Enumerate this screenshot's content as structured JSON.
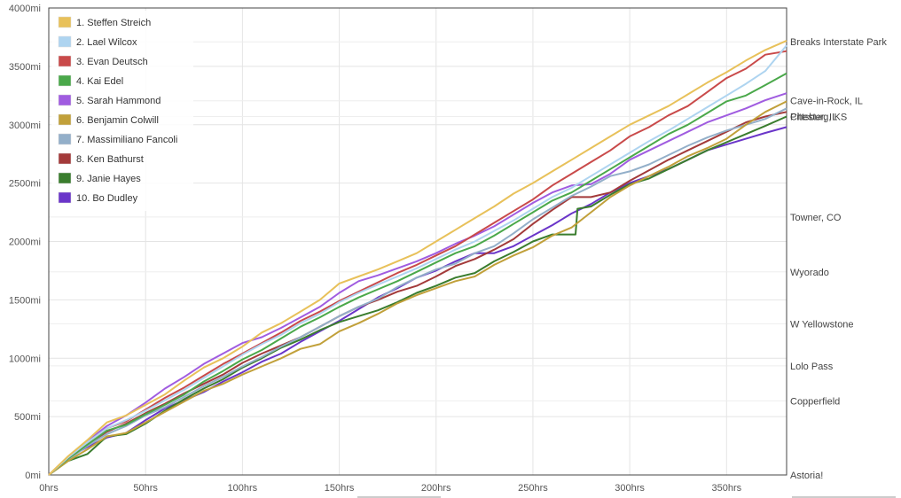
{
  "chart_data": {
    "type": "line",
    "title": "",
    "xlabel": "",
    "ylabel": "",
    "xlim": [
      0,
      381
    ],
    "ylim": [
      0,
      4000
    ],
    "grid": true,
    "legend_position": "top-left",
    "x_ticks": [
      "0hrs",
      "50hrs",
      "100hrs",
      "150hrs",
      "200hrs",
      "250hrs",
      "300hrs",
      "350hrs"
    ],
    "x_tick_values": [
      0,
      50,
      100,
      150,
      200,
      250,
      300,
      350
    ],
    "y_ticks": [
      "0mi",
      "500mi",
      "1000mi",
      "1500mi",
      "2000mi",
      "2500mi",
      "3000mi",
      "3500mi",
      "4000mi"
    ],
    "y_tick_values": [
      0,
      500,
      1000,
      1500,
      2000,
      2500,
      3000,
      3500,
      4000
    ],
    "place_labels": [
      {
        "label": "Breaks Interstate Park",
        "miles": 3710
      },
      {
        "label": "Cave-in-Rock, IL",
        "miles": 3205
      },
      {
        "label": "Chester, IL",
        "miles": 3070
      },
      {
        "label": "Pittsburg, KS",
        "miles": 3070
      },
      {
        "label": "Towner, CO",
        "miles": 2210
      },
      {
        "label": "Wyorado",
        "miles": 1740
      },
      {
        "label": "W Yellowstone",
        "miles": 1295
      },
      {
        "label": "Lolo Pass",
        "miles": 935
      },
      {
        "label": "Copperfield",
        "miles": 635
      },
      {
        "label": "Astoria!",
        "miles": 0
      }
    ],
    "series": [
      {
        "name": "1. Steffen Streich",
        "color": "#e8c15a",
        "x": [
          0,
          10,
          20,
          30,
          40,
          50,
          60,
          70,
          80,
          90,
          100,
          110,
          120,
          130,
          140,
          150,
          160,
          170,
          180,
          190,
          200,
          210,
          220,
          230,
          240,
          250,
          260,
          270,
          280,
          290,
          300,
          310,
          320,
          330,
          340,
          350,
          360,
          370,
          381
        ],
        "y": [
          0,
          160,
          300,
          450,
          510,
          600,
          690,
          810,
          920,
          1000,
          1100,
          1220,
          1300,
          1400,
          1500,
          1640,
          1700,
          1760,
          1830,
          1900,
          2000,
          2100,
          2200,
          2300,
          2410,
          2500,
          2600,
          2700,
          2800,
          2900,
          3000,
          3080,
          3160,
          3260,
          3360,
          3450,
          3550,
          3640,
          3720
        ]
      },
      {
        "name": "2. Lael Wilcox",
        "color": "#aed4f0",
        "x": [
          0,
          10,
          20,
          30,
          40,
          50,
          60,
          70,
          80,
          90,
          100,
          110,
          120,
          130,
          140,
          150,
          160,
          170,
          180,
          190,
          200,
          210,
          220,
          230,
          240,
          250,
          260,
          270,
          280,
          290,
          300,
          310,
          320,
          330,
          340,
          350,
          360,
          370,
          381
        ],
        "y": [
          0,
          150,
          280,
          400,
          470,
          550,
          640,
          730,
          830,
          930,
          1030,
          1120,
          1200,
          1300,
          1380,
          1480,
          1560,
          1630,
          1700,
          1770,
          1850,
          1930,
          2000,
          2090,
          2180,
          2280,
          2380,
          2460,
          2560,
          2660,
          2760,
          2860,
          2950,
          3050,
          3150,
          3250,
          3350,
          3460,
          3680
        ]
      },
      {
        "name": "3. Evan Deutsch",
        "color": "#c94a4a",
        "x": [
          0,
          10,
          20,
          30,
          40,
          50,
          60,
          70,
          80,
          90,
          100,
          110,
          120,
          130,
          140,
          150,
          160,
          170,
          180,
          190,
          200,
          210,
          220,
          230,
          240,
          250,
          260,
          270,
          280,
          290,
          300,
          310,
          320,
          330,
          340,
          350,
          360,
          370,
          381
        ],
        "y": [
          0,
          150,
          280,
          400,
          460,
          560,
          660,
          750,
          850,
          950,
          1040,
          1130,
          1220,
          1320,
          1400,
          1490,
          1570,
          1650,
          1730,
          1800,
          1880,
          1960,
          2060,
          2160,
          2260,
          2360,
          2480,
          2580,
          2680,
          2780,
          2900,
          2980,
          3080,
          3160,
          3280,
          3400,
          3480,
          3600,
          3630
        ]
      },
      {
        "name": "4. Kai Edel",
        "color": "#4aa84a",
        "x": [
          0,
          10,
          20,
          30,
          40,
          50,
          60,
          70,
          80,
          90,
          100,
          110,
          120,
          130,
          140,
          150,
          160,
          170,
          180,
          190,
          200,
          210,
          220,
          230,
          240,
          250,
          260,
          270,
          280,
          290,
          300,
          310,
          320,
          330,
          340,
          350,
          360,
          370,
          381
        ],
        "y": [
          0,
          140,
          260,
          380,
          430,
          520,
          600,
          690,
          800,
          890,
          990,
          1070,
          1170,
          1270,
          1350,
          1440,
          1520,
          1590,
          1660,
          1740,
          1820,
          1900,
          1960,
          2050,
          2150,
          2250,
          2350,
          2420,
          2520,
          2620,
          2720,
          2820,
          2920,
          3000,
          3100,
          3200,
          3250,
          3340,
          3440
        ]
      },
      {
        "name": "5. Sarah Hammond",
        "color": "#a05ce0",
        "x": [
          0,
          10,
          20,
          30,
          40,
          50,
          60,
          70,
          80,
          90,
          100,
          110,
          120,
          130,
          140,
          150,
          160,
          170,
          180,
          190,
          200,
          210,
          220,
          230,
          240,
          250,
          260,
          270,
          280,
          290,
          300,
          310,
          320,
          330,
          340,
          350,
          360,
          370,
          381
        ],
        "y": [
          0,
          155,
          290,
          420,
          510,
          620,
          740,
          840,
          950,
          1040,
          1130,
          1180,
          1260,
          1350,
          1440,
          1560,
          1660,
          1710,
          1770,
          1830,
          1900,
          1980,
          2050,
          2130,
          2230,
          2330,
          2420,
          2480,
          2490,
          2580,
          2700,
          2780,
          2860,
          2940,
          3020,
          3080,
          3140,
          3210,
          3270
        ]
      },
      {
        "name": "6. Benjamin Colwill",
        "color": "#c1a03a",
        "x": [
          0,
          10,
          20,
          30,
          40,
          50,
          60,
          70,
          80,
          90,
          100,
          110,
          120,
          130,
          140,
          150,
          160,
          170,
          180,
          190,
          200,
          210,
          220,
          230,
          240,
          250,
          260,
          270,
          280,
          290,
          300,
          310,
          320,
          330,
          340,
          350,
          360,
          370,
          381
        ],
        "y": [
          0,
          120,
          220,
          330,
          360,
          450,
          540,
          630,
          720,
          780,
          860,
          930,
          1000,
          1080,
          1120,
          1230,
          1300,
          1380,
          1470,
          1540,
          1600,
          1660,
          1700,
          1800,
          1880,
          1950,
          2050,
          2120,
          2250,
          2380,
          2480,
          2560,
          2640,
          2730,
          2800,
          2880,
          3000,
          3110,
          3200
        ]
      },
      {
        "name": "7. Massimiliano Fancoli",
        "color": "#93afc9",
        "x": [
          0,
          10,
          20,
          30,
          40,
          50,
          60,
          70,
          80,
          90,
          100,
          110,
          120,
          130,
          140,
          150,
          160,
          170,
          180,
          190,
          200,
          210,
          220,
          230,
          240,
          250,
          260,
          270,
          280,
          290,
          300,
          310,
          320,
          330,
          340,
          350,
          360,
          370,
          381
        ],
        "y": [
          0,
          130,
          250,
          350,
          420,
          510,
          580,
          670,
          760,
          840,
          930,
          1010,
          1100,
          1180,
          1270,
          1360,
          1440,
          1510,
          1610,
          1690,
          1760,
          1810,
          1900,
          1960,
          2070,
          2190,
          2290,
          2390,
          2470,
          2560,
          2600,
          2660,
          2740,
          2820,
          2890,
          2950,
          3000,
          3050,
          3140
        ]
      },
      {
        "name": "8. Ken Bathurst",
        "color": "#a33a3a",
        "x": [
          0,
          10,
          20,
          30,
          40,
          50,
          60,
          70,
          80,
          90,
          100,
          110,
          120,
          130,
          140,
          150,
          160,
          170,
          180,
          190,
          200,
          210,
          220,
          230,
          240,
          250,
          260,
          270,
          280,
          290,
          300,
          310,
          320,
          330,
          340,
          350,
          360,
          370,
          381
        ],
        "y": [
          0,
          140,
          260,
          370,
          440,
          530,
          610,
          700,
          780,
          860,
          960,
          1040,
          1110,
          1180,
          1270,
          1360,
          1440,
          1500,
          1570,
          1620,
          1700,
          1790,
          1850,
          1930,
          2020,
          2150,
          2270,
          2380,
          2380,
          2420,
          2520,
          2610,
          2700,
          2780,
          2860,
          2940,
          3020,
          3070,
          3110
        ]
      },
      {
        "name": "9. Janie Hayes",
        "color": "#3a7d2e",
        "x": [
          0,
          10,
          20,
          30,
          40,
          50,
          60,
          70,
          80,
          90,
          100,
          110,
          120,
          130,
          140,
          150,
          160,
          170,
          180,
          190,
          200,
          210,
          220,
          230,
          240,
          250,
          260,
          272,
          273,
          280,
          290,
          300,
          310,
          320,
          330,
          340,
          350,
          360,
          370,
          381
        ],
        "y": [
          0,
          120,
          180,
          330,
          350,
          440,
          550,
          650,
          740,
          820,
          920,
          1000,
          1090,
          1160,
          1240,
          1310,
          1360,
          1410,
          1480,
          1560,
          1620,
          1690,
          1730,
          1830,
          1910,
          2000,
          2060,
          2060,
          2280,
          2300,
          2400,
          2490,
          2540,
          2620,
          2700,
          2780,
          2850,
          2920,
          2990,
          3070
        ]
      },
      {
        "name": "10. Bo Dudley",
        "color": "#6a35c9",
        "x": [
          0,
          10,
          20,
          30,
          40,
          50,
          60,
          70,
          80,
          90,
          100,
          110,
          120,
          130,
          140,
          150,
          160,
          170,
          180,
          190,
          200,
          210,
          220,
          230,
          240,
          250,
          260,
          270,
          280,
          290,
          300,
          310,
          320,
          330,
          340,
          350,
          360,
          370,
          381
        ],
        "y": [
          0,
          150,
          240,
          320,
          360,
          470,
          570,
          640,
          710,
          800,
          880,
          970,
          1040,
          1140,
          1230,
          1320,
          1420,
          1520,
          1600,
          1690,
          1750,
          1830,
          1900,
          1900,
          1960,
          2050,
          2140,
          2240,
          2320,
          2420,
          2500,
          2560,
          2620,
          2700,
          2780,
          2830,
          2880,
          2930,
          2980
        ]
      }
    ]
  }
}
